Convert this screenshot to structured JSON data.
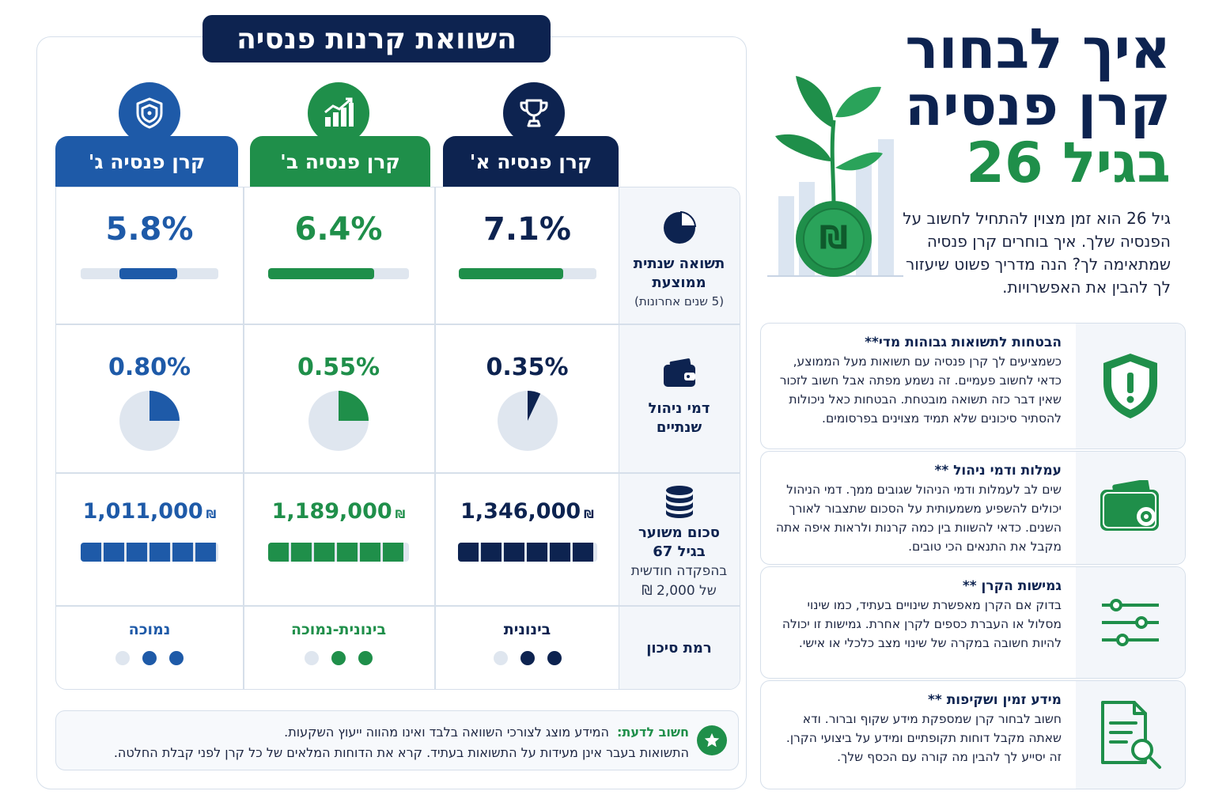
{
  "comparison": {
    "title": "השוואת קרנות פנסיה",
    "funds": [
      {
        "name": "קרן פנסיה א'",
        "color": "#0d2350",
        "icon": "trophy-icon"
      },
      {
        "name": "קרן פנסיה ב'",
        "color": "#1f8f4a",
        "icon": "growth-chart-icon"
      },
      {
        "name": "קרן פנסיה ג'",
        "color": "#1e5aa8",
        "icon": "shield-icon"
      }
    ],
    "rows": {
      "return": {
        "title": "תשואה שנתית ממוצעת",
        "subtitle": "(5 שנים אחרונות)",
        "values": [
          "7.1%",
          "6.4%",
          "5.8%"
        ],
        "bar_fraction": [
          0.76,
          0.75,
          0.42
        ]
      },
      "fees": {
        "title": "דמי ניהול שנתיים",
        "values": [
          "0.35%",
          "0.55%",
          "0.80%"
        ],
        "pie_fraction": [
          0.07,
          0.25,
          0.25
        ]
      },
      "amount": {
        "title": "סכום משוער בגיל 67",
        "subtitle": "בהפקדה חודשית של 2,000 ₪",
        "values": [
          "1,346,000",
          "1,189,000",
          "1,011,000"
        ],
        "currency": "₪",
        "segments_filled": [
          6,
          6,
          6
        ]
      },
      "risk": {
        "title": "רמת סיכון",
        "values": [
          "בינונית",
          "בינונית-נמוכה",
          "נמוכה"
        ],
        "dots_filled": [
          2,
          2,
          2
        ]
      }
    },
    "notice": {
      "label": "חשוב לדעת:",
      "line1": "המידע מוצג לצורכי השוואה בלבד ואינו מהווה ייעוץ השקעות.",
      "line2": "התשואות בעבר אינן מעידות על התשואות בעתיד. קרא את הדוחות המלאים של כל קרן לפני קבלת החלטה."
    }
  },
  "hero": {
    "title_line1": "איך לבחור",
    "title_line2": "קרן פנסיה",
    "title_line3": "בגיל 26",
    "intro": "גיל 26 הוא זמן מצוין להתחיל לחשוב על הפנסיה שלך. איך בוחרים קרן פנסיה שמתאימה לך? הנה מדריך פשוט שיעזור לך להבין את האפשרויות.",
    "coin_symbol": "₪"
  },
  "tips": [
    {
      "title": "הבטחות לתשואות גבוהות מדי**",
      "text": "כשמציעים לך קרן פנסיה עם תשואות מעל הממוצע, כדאי לחשוב פעמיים. זה נשמע מפתה אבל חשוב לזכור שאין דבר כזה תשואה מובטחת. הבטחות כאל ניכולות להסתיר סיכונים שלא תמיד מצוינים בפרסומים.",
      "icon": "alert-shield-icon"
    },
    {
      "title": "עמלות ודמי ניהול **",
      "text": "שים לב לעמלות ודמי הניהול שגובים ממך. דמי הניהול יכולים להשפיע משמעותית על הסכום שתצבור לאורך השנים. כדאי להשוות בין כמה קרנות ולראות איפה אתה מקבל את התנאים הכי טובים.",
      "icon": "wallet-icon"
    },
    {
      "title": "גמישות הקרן **",
      "text": "בדוק אם הקרן מאפשרת שינויים בעתיד, כמו שינוי מסלול או העברת כספים לקרן אחרת. גמישות זו יכולה להיות חשובה במקרה של שינוי מצב כלכלי או אישי.",
      "icon": "sliders-icon"
    },
    {
      "title": "מידע זמין ושקיפות **",
      "text": "חשוב לבחור קרן שמספקת מידע שקוף וברור. ודא שאתה מקבל דוחות תקופתיים ומידע על ביצועי הקרן. זה יסייע לך להבין מה קורה עם הכסף שלך.",
      "icon": "document-search-icon"
    }
  ]
}
